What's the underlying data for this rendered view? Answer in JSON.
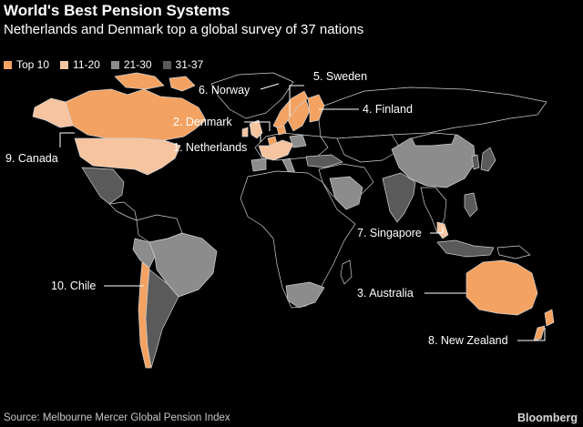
{
  "title": "World's Best Pension Systems",
  "subtitle": "Netherlands and Denmark top a global survey of 37 nations",
  "legend": [
    {
      "label": "Top 10",
      "color": "#f4a261"
    },
    {
      "label": "11-20",
      "color": "#f7c4a0"
    },
    {
      "label": "21-30",
      "color": "#8c8c8c"
    },
    {
      "label": "31-37",
      "color": "#5a5a5a"
    }
  ],
  "callouts": {
    "sweden": "5. Sweden",
    "norway": "6. Norway",
    "finland": "4. Finland",
    "denmark": "2. Denmark",
    "netherlands": "1. Netherlands",
    "canada": "9. Canada",
    "singapore": "7. Singapore",
    "chile": "10. Chile",
    "australia": "3. Australia",
    "new_zealand": "8. New Zealand"
  },
  "source": "Source: Melbourne Mercer Global Pension Index",
  "brand": "Bloomberg",
  "colors": {
    "background": "#000000",
    "land_unranked": "#000000",
    "border": "#d0d0d0"
  }
}
